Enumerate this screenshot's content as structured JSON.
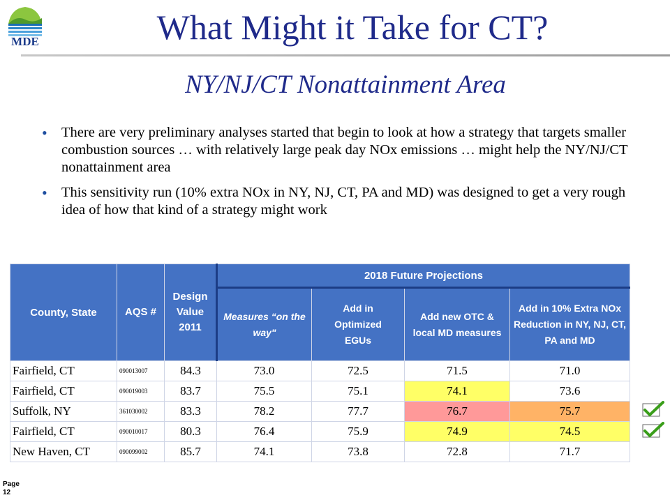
{
  "logo": {
    "text": "MDE"
  },
  "title": "What Might it Take for CT?",
  "subtitle": "NY/NJ/CT Nonattainment Area",
  "bullets": [
    "There are very preliminary analyses started that begin to look at how a strategy that targets smaller combustion sources … with relatively large peak day NOx emissions … might help the NY/NJ/CT nonattainment area",
    "This sensitivity run (10% extra NOx in NY, NJ, CT, PA and MD) was designed to get a very rough idea of how that kind of a strategy might work"
  ],
  "table": {
    "headers": {
      "county": "County, State",
      "aqs": "AQS #",
      "design": "Design Value 2011",
      "future_group": "2018 Future Projections",
      "measures": "Measures “on the way\"",
      "optimized": "Add in Optimized EGUs",
      "otc": "Add new OTC & local MD measures",
      "extra": "Add in 10% Extra NOx Reduction in NY, NJ, CT, PA and MD"
    },
    "rows": [
      {
        "county": "Fairfield, CT",
        "aqs": "090013007",
        "design": "84.3",
        "measures": "73.0",
        "optimized": "72.5",
        "otc": "71.5",
        "extra": "71.0"
      },
      {
        "county": "Fairfield, CT",
        "aqs": "090019003",
        "design": "83.7",
        "measures": "75.5",
        "optimized": "75.1",
        "otc": "74.1",
        "extra": "73.6"
      },
      {
        "county": "Suffolk, NY",
        "aqs": "361030002",
        "design": "83.3",
        "measures": "78.2",
        "optimized": "77.7",
        "otc": "76.7",
        "extra": "75.7"
      },
      {
        "county": "Fairfield, CT",
        "aqs": "090010017",
        "design": "80.3",
        "measures": "76.4",
        "optimized": "75.9",
        "otc": "74.9",
        "extra": "74.5"
      },
      {
        "county": "New Haven, CT",
        "aqs": "090099002",
        "design": "85.7",
        "measures": "74.1",
        "optimized": "73.8",
        "otc": "72.8",
        "extra": "71.7"
      }
    ],
    "highlight_colors": {
      "yellow": "#ffff66",
      "pink": "#ff9999",
      "orange": "#ffb366",
      "header": "#4472c4"
    }
  },
  "checkmarks": {
    "icon": "checkmark-icon",
    "rows_marked": [
      3,
      4
    ]
  },
  "footer": {
    "page_label": "Page",
    "page_number": "12"
  }
}
